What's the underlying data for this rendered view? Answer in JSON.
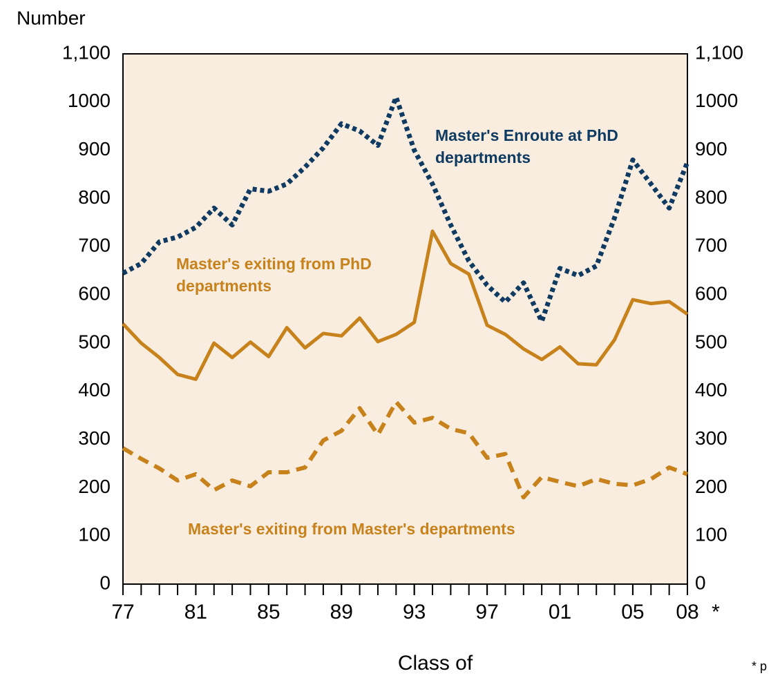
{
  "chart_data": {
    "type": "line",
    "y_axis_label": "Number",
    "x_axis_label": "Class of",
    "x_note_marker": "*",
    "footnote": "* p",
    "x": [
      1977,
      1978,
      1979,
      1980,
      1981,
      1982,
      1983,
      1984,
      1985,
      1986,
      1987,
      1988,
      1989,
      1990,
      1991,
      1992,
      1993,
      1994,
      1995,
      1996,
      1997,
      1998,
      1999,
      2000,
      2001,
      2002,
      2003,
      2004,
      2005,
      2006,
      2007,
      2008
    ],
    "xlim": [
      1977,
      2008
    ],
    "xticks": [
      {
        "value": 1977,
        "label": "77"
      },
      {
        "value": 1981,
        "label": "81"
      },
      {
        "value": 1985,
        "label": "85"
      },
      {
        "value": 1989,
        "label": "89"
      },
      {
        "value": 1993,
        "label": "93"
      },
      {
        "value": 1997,
        "label": "97"
      },
      {
        "value": 2001,
        "label": "01"
      },
      {
        "value": 2005,
        "label": "05"
      },
      {
        "value": 2008,
        "label": "08"
      }
    ],
    "ylim": [
      0,
      1100
    ],
    "yticks": [
      0,
      100,
      200,
      300,
      400,
      500,
      600,
      700,
      800,
      900,
      1000,
      {
        "value": 1100,
        "label": "1,100"
      }
    ],
    "y2lim": [
      0,
      1100
    ],
    "y2ticks": [
      0,
      100,
      200,
      300,
      400,
      500,
      600,
      700,
      800,
      900,
      1000,
      {
        "value": 1100,
        "label": "1,100"
      }
    ],
    "plot_background": "#f8eddf",
    "series": [
      {
        "name": "Master's Enroute at PhD departments",
        "color": "#0f3a62",
        "style": "dotted",
        "values": [
          645,
          665,
          710,
          720,
          740,
          780,
          745,
          820,
          815,
          830,
          865,
          905,
          955,
          940,
          910,
          1010,
          900,
          830,
          745,
          670,
          620,
          585,
          625,
          545,
          655,
          640,
          660,
          760,
          880,
          830,
          780,
          875
        ]
      },
      {
        "name": "Master's exiting from PhD departments",
        "color": "#c8821c",
        "style": "solid",
        "values": [
          540,
          500,
          470,
          435,
          425,
          500,
          470,
          502,
          472,
          532,
          490,
          520,
          515,
          552,
          503,
          518,
          543,
          732,
          665,
          643,
          537,
          518,
          488,
          466,
          492,
          457,
          455,
          507,
          590,
          582,
          586,
          560
        ]
      },
      {
        "name": "Master's exiting from Master's departments",
        "color": "#c8821c",
        "style": "dashed",
        "values": [
          282,
          260,
          240,
          215,
          228,
          195,
          215,
          203,
          232,
          232,
          242,
          298,
          318,
          365,
          310,
          378,
          335,
          345,
          322,
          313,
          262,
          270,
          180,
          222,
          212,
          203,
          218,
          208,
          205,
          218,
          242,
          228
        ]
      }
    ]
  }
}
